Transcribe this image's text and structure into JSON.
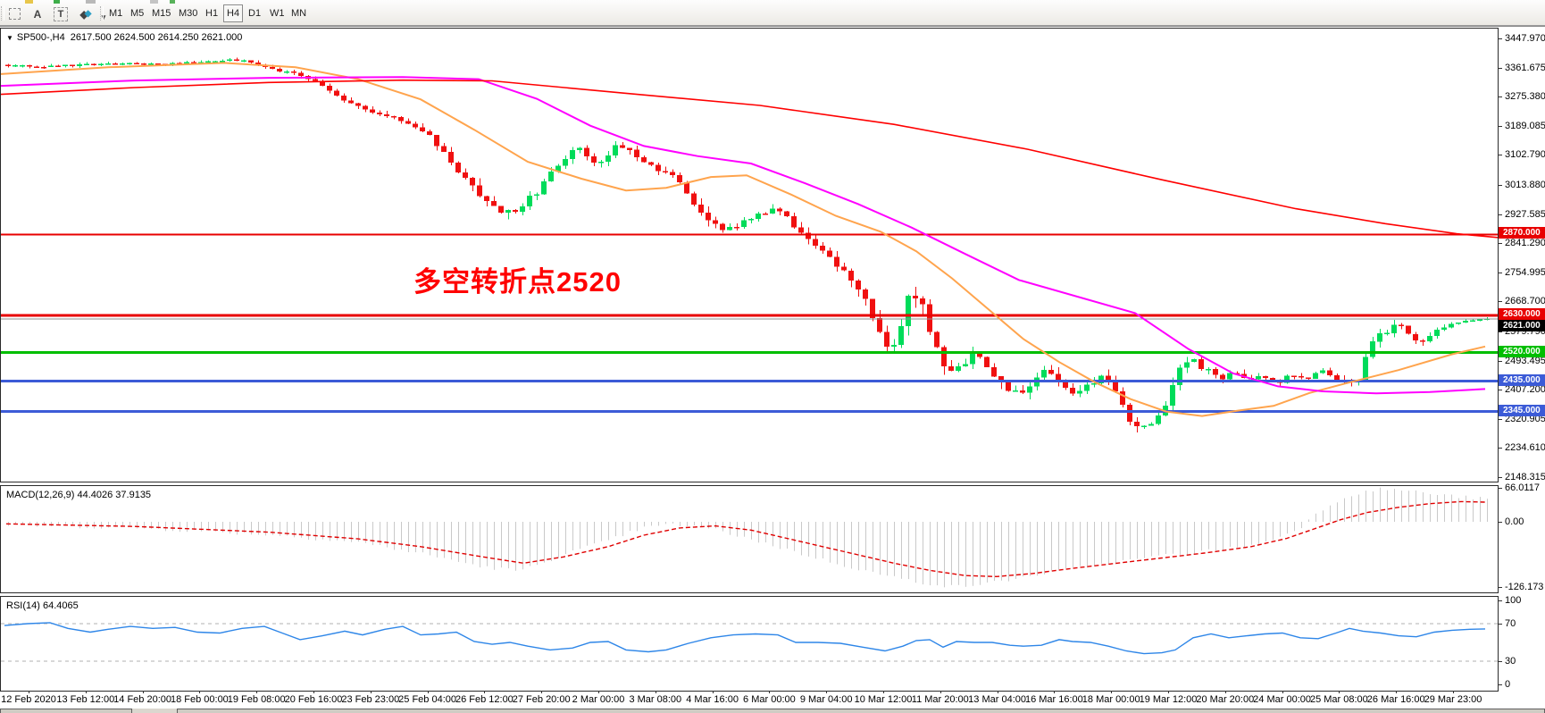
{
  "toolbar": {
    "tools": [
      {
        "name": "crosshair-grid-tool",
        "glyph": ""
      },
      {
        "name": "font-size-tool",
        "glyph": "A"
      },
      {
        "name": "text-label-tool",
        "glyph": "T"
      },
      {
        "name": "shapes-tool",
        "glyph": "◆"
      },
      {
        "name": "shapes-dropdown",
        "glyph": "▾"
      }
    ],
    "timeframes": [
      "M1",
      "M5",
      "M15",
      "M30",
      "H1",
      "H4",
      "D1",
      "W1",
      "MN"
    ],
    "active_timeframe": "H4"
  },
  "chart": {
    "symbol_title": "SP500-,H4",
    "ohlc_text": "2617.500 2624.500 2614.250 2621.000",
    "annotation": {
      "text": "多空转折点2520",
      "color": "#FF0000"
    },
    "current_price": {
      "value": 2621.0,
      "label": "2621.000",
      "tag_bg": "#000000",
      "line_color": "#8C8C8C"
    },
    "level_lines": [
      {
        "price": 2870.0,
        "label": "2870.000",
        "color": "#E80000",
        "width": 2
      },
      {
        "price": 2630.0,
        "label": "2630.000",
        "color": "#E80000",
        "width": 3
      },
      {
        "price": 2520.0,
        "label": "2520.000",
        "color": "#00BE00",
        "width": 3
      },
      {
        "price": 2435.0,
        "label": "2435.000",
        "color": "#3C5BD7",
        "width": 3
      },
      {
        "price": 2345.0,
        "label": "2345.000",
        "color": "#3C5BD7",
        "width": 3
      }
    ]
  },
  "colors": {
    "candle_up": "#00DC5A",
    "candle_down": "#F01010",
    "ma_fast": "#FFA44D",
    "ma_mid": "#FF00FF",
    "ma_slow": "#FF0000",
    "rsi_line": "#2E86E8",
    "macd_hist": "#C9C9C9",
    "macd_signal": "#E00000"
  },
  "chart_data": {
    "type": "candlestick",
    "symbol": "SP500-",
    "period": "H4",
    "ohlc_current": {
      "open": 2617.5,
      "high": 2624.5,
      "low": 2614.25,
      "close": 2621.0
    },
    "y_axis": {
      "top_price": 3447.97,
      "bottom_price": 2148.315,
      "labels": [
        "3447.970",
        "3361.675",
        "3275.380",
        "3189.085",
        "3102.790",
        "3013.880",
        "2927.585",
        "2841.290",
        "2754.995",
        "2668.700",
        "2579.790",
        "2493.495",
        "2407.200",
        "2320.905",
        "2234.610",
        "2148.315"
      ]
    },
    "time_labels": [
      "12 Feb 2020",
      "13 Feb 12:00",
      "14 Feb 20:00",
      "18 Feb 00:00",
      "19 Feb 08:00",
      "20 Feb 16:00",
      "23 Feb 23:00",
      "25 Feb 04:00",
      "26 Feb 12:00",
      "27 Feb 20:00",
      "2 Mar 00:00",
      "3 Mar 08:00",
      "4 Mar 16:00",
      "6 Mar 00:00",
      "9 Mar 04:00",
      "10 Mar 12:00",
      "11 Mar 20:00",
      "13 Mar 04:00",
      "16 Mar 16:00",
      "18 Mar 00:00",
      "19 Mar 12:00",
      "20 Mar 20:00",
      "24 Mar 00:00",
      "25 Mar 08:00",
      "26 Mar 16:00",
      "29 Mar 23:00"
    ],
    "price_path": [
      [
        4,
        3370
      ],
      [
        60,
        3368
      ],
      [
        120,
        3378
      ],
      [
        180,
        3375
      ],
      [
        240,
        3385
      ],
      [
        270,
        3388
      ],
      [
        300,
        3360
      ],
      [
        330,
        3345
      ],
      [
        360,
        3310
      ],
      [
        390,
        3255
      ],
      [
        420,
        3230
      ],
      [
        450,
        3200
      ],
      [
        480,
        3155
      ],
      [
        505,
        3075
      ],
      [
        530,
        3000
      ],
      [
        555,
        2945
      ],
      [
        575,
        2940
      ],
      [
        600,
        3000
      ],
      [
        620,
        3075
      ],
      [
        645,
        3130
      ],
      [
        665,
        3065
      ],
      [
        690,
        3140
      ],
      [
        710,
        3105
      ],
      [
        735,
        3060
      ],
      [
        758,
        3030
      ],
      [
        780,
        2940
      ],
      [
        795,
        2895
      ],
      [
        815,
        2885
      ],
      [
        840,
        2925
      ],
      [
        868,
        2945
      ],
      [
        885,
        2900
      ],
      [
        905,
        2845
      ],
      [
        930,
        2790
      ],
      [
        950,
        2730
      ],
      [
        970,
        2665
      ],
      [
        988,
        2530
      ],
      [
        1002,
        2565
      ],
      [
        1014,
        2700
      ],
      [
        1028,
        2665
      ],
      [
        1042,
        2560
      ],
      [
        1058,
        2455
      ],
      [
        1072,
        2480
      ],
      [
        1088,
        2520
      ],
      [
        1104,
        2480
      ],
      [
        1120,
        2425
      ],
      [
        1138,
        2390
      ],
      [
        1155,
        2440
      ],
      [
        1170,
        2470
      ],
      [
        1186,
        2430
      ],
      [
        1200,
        2392
      ],
      [
        1215,
        2420
      ],
      [
        1230,
        2455
      ],
      [
        1245,
        2408
      ],
      [
        1258,
        2335
      ],
      [
        1272,
        2300
      ],
      [
        1288,
        2320
      ],
      [
        1302,
        2370
      ],
      [
        1318,
        2470
      ],
      [
        1332,
        2500
      ],
      [
        1348,
        2468
      ],
      [
        1362,
        2440
      ],
      [
        1378,
        2462
      ],
      [
        1395,
        2440
      ],
      [
        1412,
        2448
      ],
      [
        1428,
        2432
      ],
      [
        1445,
        2455
      ],
      [
        1460,
        2438
      ],
      [
        1475,
        2468
      ],
      [
        1490,
        2450
      ],
      [
        1505,
        2430
      ],
      [
        1518,
        2442
      ],
      [
        1532,
        2555
      ],
      [
        1548,
        2580
      ],
      [
        1562,
        2600
      ],
      [
        1578,
        2568
      ],
      [
        1592,
        2548
      ],
      [
        1608,
        2595
      ],
      [
        1625,
        2610
      ],
      [
        1645,
        2618
      ],
      [
        1662,
        2621
      ]
    ],
    "volatility": [
      [
        4,
        12
      ],
      [
        280,
        12
      ],
      [
        340,
        18
      ],
      [
        420,
        22
      ],
      [
        500,
        35
      ],
      [
        545,
        45
      ],
      [
        600,
        35
      ],
      [
        660,
        30
      ],
      [
        700,
        28
      ],
      [
        760,
        30
      ],
      [
        790,
        40
      ],
      [
        830,
        25
      ],
      [
        880,
        30
      ],
      [
        940,
        35
      ],
      [
        975,
        55
      ],
      [
        1000,
        70
      ],
      [
        1020,
        65
      ],
      [
        1050,
        55
      ],
      [
        1090,
        45
      ],
      [
        1130,
        40
      ],
      [
        1170,
        38
      ],
      [
        1210,
        38
      ],
      [
        1250,
        42
      ],
      [
        1285,
        38
      ],
      [
        1320,
        50
      ],
      [
        1360,
        28
      ],
      [
        1400,
        24
      ],
      [
        1440,
        26
      ],
      [
        1480,
        30
      ],
      [
        1520,
        30
      ],
      [
        1540,
        45
      ],
      [
        1570,
        30
      ],
      [
        1600,
        25
      ],
      [
        1640,
        16
      ],
      [
        1662,
        12
      ]
    ],
    "ma_fast_orange": [
      [
        0,
        3345
      ],
      [
        120,
        3365
      ],
      [
        250,
        3378
      ],
      [
        330,
        3365
      ],
      [
        400,
        3330
      ],
      [
        470,
        3270
      ],
      [
        530,
        3180
      ],
      [
        590,
        3085
      ],
      [
        650,
        3035
      ],
      [
        700,
        3000
      ],
      [
        745,
        3008
      ],
      [
        795,
        3040
      ],
      [
        835,
        3045
      ],
      [
        885,
        2988
      ],
      [
        935,
        2925
      ],
      [
        985,
        2878
      ],
      [
        1025,
        2820
      ],
      [
        1065,
        2740
      ],
      [
        1105,
        2650
      ],
      [
        1145,
        2560
      ],
      [
        1185,
        2492
      ],
      [
        1225,
        2432
      ],
      [
        1265,
        2382
      ],
      [
        1305,
        2345
      ],
      [
        1345,
        2332
      ],
      [
        1385,
        2348
      ],
      [
        1425,
        2362
      ],
      [
        1465,
        2400
      ],
      [
        1505,
        2428
      ],
      [
        1565,
        2468
      ],
      [
        1625,
        2515
      ],
      [
        1662,
        2538
      ]
    ],
    "ma_mid_magenta": [
      [
        0,
        3310
      ],
      [
        150,
        3326
      ],
      [
        300,
        3334
      ],
      [
        450,
        3336
      ],
      [
        535,
        3330
      ],
      [
        600,
        3272
      ],
      [
        660,
        3192
      ],
      [
        720,
        3132
      ],
      [
        780,
        3102
      ],
      [
        840,
        3080
      ],
      [
        900,
        3022
      ],
      [
        960,
        2960
      ],
      [
        1020,
        2890
      ],
      [
        1080,
        2812
      ],
      [
        1140,
        2735
      ],
      [
        1270,
        2637
      ],
      [
        1330,
        2530
      ],
      [
        1380,
        2458
      ],
      [
        1430,
        2420
      ],
      [
        1480,
        2405
      ],
      [
        1540,
        2399
      ],
      [
        1600,
        2403
      ],
      [
        1662,
        2412
      ]
    ],
    "ma_slow_red": [
      [
        0,
        3285
      ],
      [
        150,
        3305
      ],
      [
        300,
        3320
      ],
      [
        450,
        3327
      ],
      [
        550,
        3325
      ],
      [
        700,
        3288
      ],
      [
        850,
        3252
      ],
      [
        1000,
        3196
      ],
      [
        1150,
        3122
      ],
      [
        1300,
        3032
      ],
      [
        1450,
        2946
      ],
      [
        1550,
        2902
      ],
      [
        1630,
        2872
      ],
      [
        1676,
        2861
      ]
    ],
    "macd": {
      "label_text": "MACD(12,26,9) 44.4026 37.9135",
      "main_value": 44.4026,
      "signal_value": 37.9135,
      "axis_labels": [
        "66.0117",
        "0.00",
        "-126.173"
      ],
      "hist_keypoints": [
        [
          6,
          -6
        ],
        [
          150,
          -12
        ],
        [
          300,
          -25
        ],
        [
          400,
          -40
        ],
        [
          470,
          -62
        ],
        [
          540,
          -88
        ],
        [
          580,
          -95
        ],
        [
          630,
          -62
        ],
        [
          680,
          -35
        ],
        [
          715,
          -12
        ],
        [
          750,
          -5
        ],
        [
          790,
          -12
        ],
        [
          830,
          -30
        ],
        [
          870,
          -50
        ],
        [
          910,
          -70
        ],
        [
          950,
          -88
        ],
        [
          990,
          -105
        ],
        [
          1030,
          -118
        ],
        [
          1065,
          -126
        ],
        [
          1100,
          -120
        ],
        [
          1140,
          -108
        ],
        [
          1180,
          -95
        ],
        [
          1220,
          -85
        ],
        [
          1260,
          -75
        ],
        [
          1300,
          -65
        ],
        [
          1340,
          -58
        ],
        [
          1380,
          -50
        ],
        [
          1410,
          -42
        ],
        [
          1435,
          -25
        ],
        [
          1455,
          -8
        ],
        [
          1475,
          22
        ],
        [
          1495,
          42
        ],
        [
          1515,
          55
        ],
        [
          1545,
          64
        ],
        [
          1575,
          60
        ],
        [
          1610,
          52
        ],
        [
          1640,
          47
        ],
        [
          1662,
          44
        ]
      ],
      "signal_keypoints": [
        [
          6,
          -4
        ],
        [
          150,
          -9
        ],
        [
          300,
          -20
        ],
        [
          400,
          -33
        ],
        [
          470,
          -48
        ],
        [
          540,
          -68
        ],
        [
          585,
          -80
        ],
        [
          630,
          -68
        ],
        [
          680,
          -48
        ],
        [
          720,
          -26
        ],
        [
          760,
          -12
        ],
        [
          800,
          -8
        ],
        [
          840,
          -16
        ],
        [
          880,
          -32
        ],
        [
          920,
          -48
        ],
        [
          960,
          -64
        ],
        [
          1000,
          -80
        ],
        [
          1040,
          -94
        ],
        [
          1080,
          -104
        ],
        [
          1115,
          -106
        ],
        [
          1155,
          -100
        ],
        [
          1200,
          -90
        ],
        [
          1250,
          -80
        ],
        [
          1300,
          -70
        ],
        [
          1350,
          -60
        ],
        [
          1400,
          -48
        ],
        [
          1440,
          -32
        ],
        [
          1470,
          -14
        ],
        [
          1500,
          4
        ],
        [
          1530,
          18
        ],
        [
          1565,
          28
        ],
        [
          1600,
          35
        ],
        [
          1635,
          39
        ],
        [
          1662,
          38
        ]
      ]
    },
    "rsi": {
      "label_text": "RSI(14) 64.4065",
      "value": 64.4065,
      "axis_labels": [
        "100",
        "70",
        "30",
        "0"
      ],
      "levels": [
        70,
        30
      ],
      "points": [
        [
          4,
          68
        ],
        [
          30,
          70
        ],
        [
          55,
          71
        ],
        [
          75,
          65
        ],
        [
          100,
          61
        ],
        [
          120,
          64
        ],
        [
          145,
          67
        ],
        [
          170,
          65
        ],
        [
          195,
          66
        ],
        [
          220,
          61
        ],
        [
          245,
          60
        ],
        [
          270,
          65
        ],
        [
          295,
          67
        ],
        [
          315,
          60
        ],
        [
          335,
          53
        ],
        [
          360,
          57
        ],
        [
          385,
          62
        ],
        [
          405,
          58
        ],
        [
          430,
          64
        ],
        [
          450,
          67
        ],
        [
          470,
          58
        ],
        [
          490,
          59
        ],
        [
          510,
          61
        ],
        [
          530,
          51
        ],
        [
          550,
          48
        ],
        [
          570,
          50
        ],
        [
          590,
          46
        ],
        [
          615,
          42
        ],
        [
          640,
          44
        ],
        [
          660,
          50
        ],
        [
          680,
          51
        ],
        [
          700,
          42
        ],
        [
          725,
          40
        ],
        [
          745,
          42
        ],
        [
          770,
          49
        ],
        [
          795,
          55
        ],
        [
          820,
          58
        ],
        [
          845,
          59
        ],
        [
          870,
          58
        ],
        [
          890,
          50
        ],
        [
          915,
          50
        ],
        [
          940,
          49
        ],
        [
          965,
          45
        ],
        [
          990,
          41
        ],
        [
          1010,
          46
        ],
        [
          1025,
          52
        ],
        [
          1040,
          53
        ],
        [
          1055,
          45
        ],
        [
          1070,
          51
        ],
        [
          1090,
          50
        ],
        [
          1110,
          50
        ],
        [
          1130,
          47
        ],
        [
          1145,
          46
        ],
        [
          1165,
          47
        ],
        [
          1185,
          53
        ],
        [
          1200,
          51
        ],
        [
          1220,
          50
        ],
        [
          1240,
          46
        ],
        [
          1260,
          41
        ],
        [
          1280,
          38
        ],
        [
          1300,
          39
        ],
        [
          1315,
          42
        ],
        [
          1335,
          55
        ],
        [
          1355,
          59
        ],
        [
          1375,
          55
        ],
        [
          1395,
          57
        ],
        [
          1415,
          59
        ],
        [
          1435,
          60
        ],
        [
          1455,
          55
        ],
        [
          1475,
          54
        ],
        [
          1495,
          60
        ],
        [
          1510,
          65
        ],
        [
          1525,
          62
        ],
        [
          1545,
          60
        ],
        [
          1565,
          57
        ],
        [
          1585,
          56
        ],
        [
          1605,
          61
        ],
        [
          1625,
          63
        ],
        [
          1645,
          64
        ],
        [
          1662,
          64.4
        ]
      ]
    }
  }
}
